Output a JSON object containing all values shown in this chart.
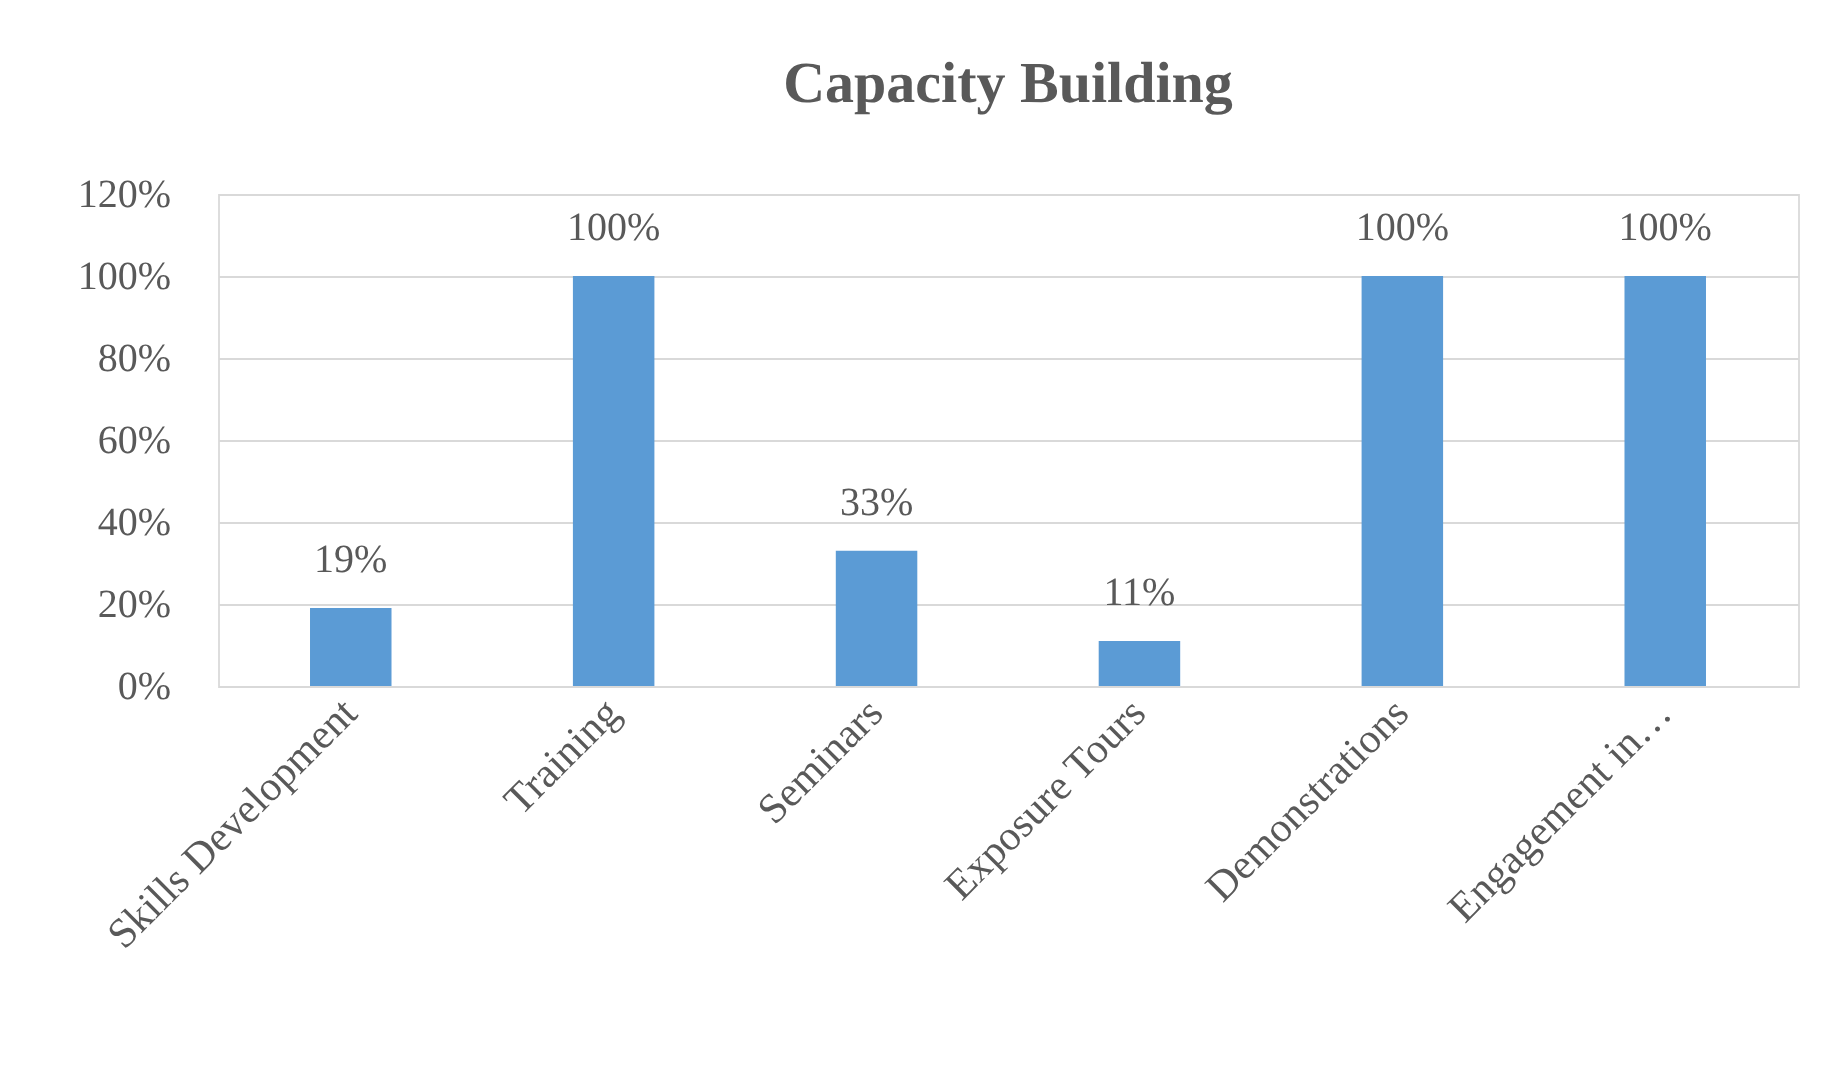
{
  "chart_data": {
    "type": "bar",
    "title": "Capacity Building",
    "categories": [
      "Skills Development",
      "Training",
      "Seminars",
      "Exposure Tours",
      "Demonstrations",
      "Engagement in…"
    ],
    "values": [
      19,
      100,
      33,
      11,
      100,
      100
    ],
    "color": "#5b9bd5",
    "value_labels": [
      "19%",
      "100%",
      "33%",
      "11%",
      "100%",
      "100%"
    ],
    "ylim": [
      0,
      120
    ],
    "yticks": [
      {
        "value": 0,
        "label": "0%"
      },
      {
        "value": 20,
        "label": "20%"
      },
      {
        "value": 40,
        "label": "40%"
      },
      {
        "value": 60,
        "label": "60%"
      },
      {
        "value": 80,
        "label": "80%"
      },
      {
        "value": 100,
        "label": "100%"
      },
      {
        "value": 120,
        "label": "120%"
      }
    ],
    "grid": "y"
  }
}
